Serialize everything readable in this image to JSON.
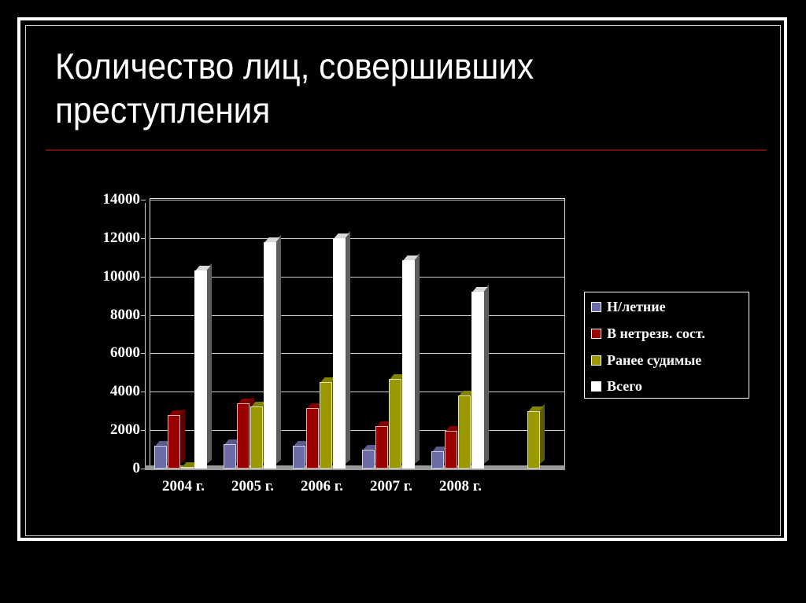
{
  "slide": {
    "title_line1": "Количество лиц, совершивших",
    "title_line2": "преступления"
  },
  "colors": {
    "background": "#000000",
    "rule": "#6e0f0f",
    "series": [
      "#6b6ba6",
      "#9b0000",
      "#9a9a00",
      "#ffffff"
    ]
  },
  "chart_data": {
    "type": "bar",
    "title": "Количество лиц, совершивших преступления",
    "xlabel": "",
    "ylabel": "",
    "ylim": [
      0,
      14000
    ],
    "yticks": [
      "0",
      "2000",
      "4000",
      "6000",
      "8000",
      "10000",
      "12000",
      "14000"
    ],
    "categories": [
      "2004 г.",
      "2005 г.",
      "2006 г.",
      "2007 г.",
      "2008 г.",
      ""
    ],
    "series": [
      {
        "name": "Н/летние",
        "color": "#6b6ba6",
        "values": [
          1200,
          1250,
          1200,
          1000,
          900,
          0
        ]
      },
      {
        "name": "В нетрезв. сост.",
        "color": "#9b0000",
        "values": [
          2800,
          3400,
          3150,
          2200,
          1950,
          0
        ]
      },
      {
        "name": "Ранее судимые",
        "color": "#9a9a00",
        "values": [
          50,
          3250,
          4500,
          4650,
          3800,
          3000
        ]
      },
      {
        "name": "Всего",
        "color": "#ffffff",
        "values": [
          10300,
          11800,
          12000,
          10850,
          9200,
          0
        ]
      }
    ],
    "grid": true,
    "legend_position": "right",
    "style": "3d-clustered-column"
  },
  "legend": {
    "items": [
      {
        "label": "Н/летние"
      },
      {
        "label": "В нетрезв. сост."
      },
      {
        "label": "Ранее судимые"
      },
      {
        "label": "Всего"
      }
    ]
  }
}
